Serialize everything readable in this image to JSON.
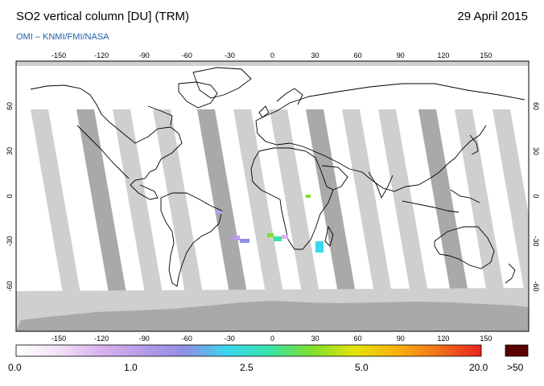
{
  "header": {
    "title": "SO2 vertical column [DU] (TRM)",
    "date": "29 April 2015",
    "source": "OMI  –  KNMI/FMI/NASA"
  },
  "map": {
    "lon_ticks": [
      "-150",
      "-120",
      "-90",
      "-60",
      "-30",
      "0",
      "30",
      "60",
      "90",
      "120",
      "150"
    ],
    "lat_ticks": [
      "60",
      "30",
      "0",
      "-30",
      "-60"
    ],
    "colors": {
      "ocean": "#ffffff",
      "no_data": "#cfcfcf",
      "no_data_dark": "#a9a9a9",
      "coast": "#000000"
    }
  },
  "colorbar": {
    "labels": [
      "0.0",
      "1.0",
      "2.5",
      "5.0",
      "20.0"
    ],
    "overflow_label": ">50",
    "overflow_color": "#5a0000",
    "gradient": [
      "#ffffff",
      "#f3e0f6",
      "#d9b2ef",
      "#b69be8",
      "#8f8ee6",
      "#3ad7ee",
      "#3ae3a8",
      "#7fe02a",
      "#e4e30a",
      "#f8b20f",
      "#f3701a",
      "#e7221f"
    ]
  }
}
